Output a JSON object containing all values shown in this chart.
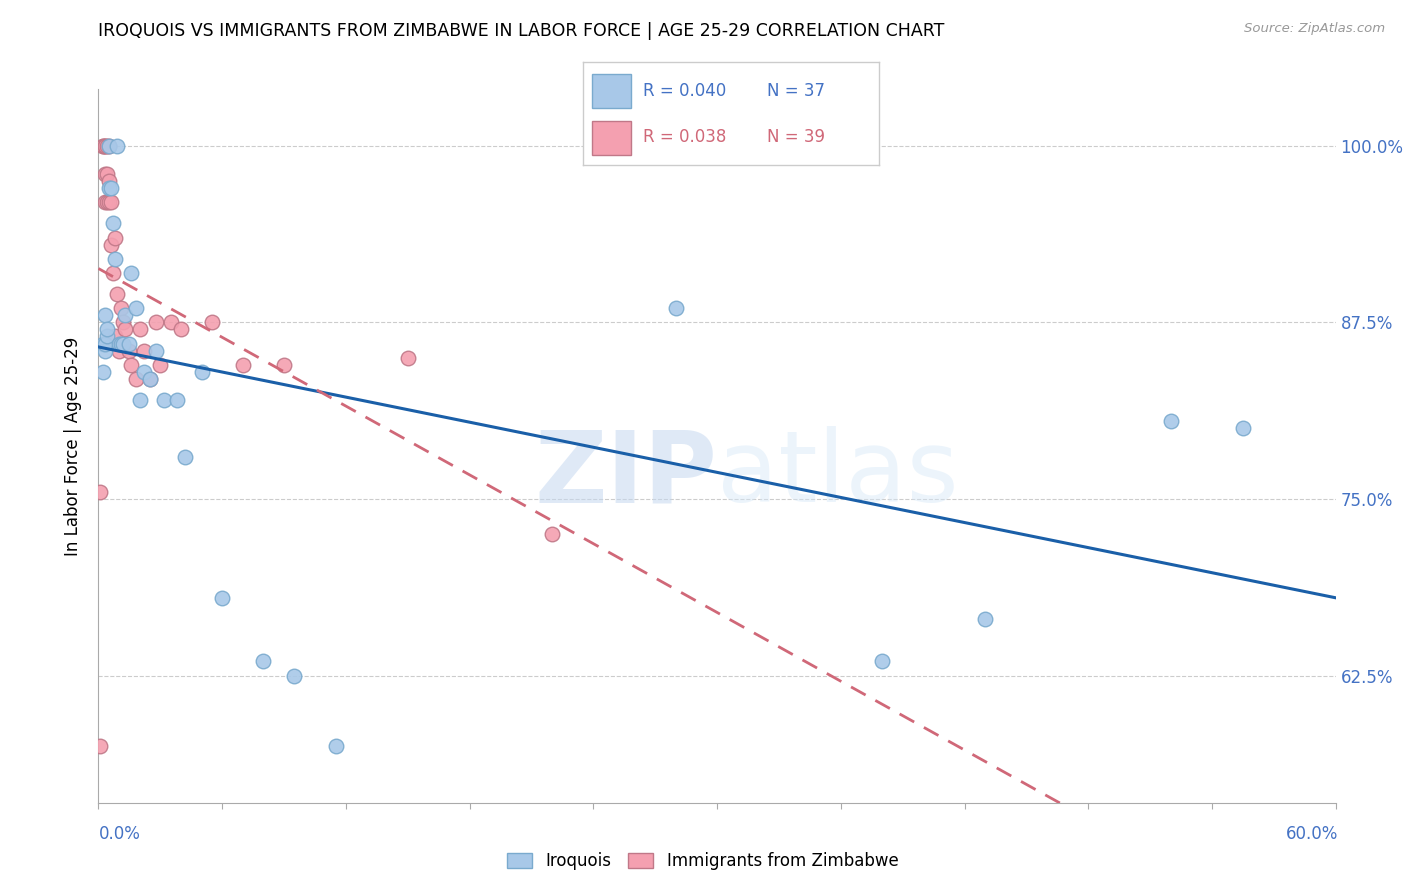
{
  "title": "IROQUOIS VS IMMIGRANTS FROM ZIMBABWE IN LABOR FORCE | AGE 25-29 CORRELATION CHART",
  "source": "Source: ZipAtlas.com",
  "ylabel": "In Labor Force | Age 25-29",
  "color_blue": "#a8c8e8",
  "color_pink": "#f4a0b0",
  "line_blue": "#1a5fa8",
  "line_pink": "#d06878",
  "watermark_top": "ZIP",
  "watermark_bot": "atlas",
  "xlim": [
    0.0,
    0.6
  ],
  "ylim": [
    0.535,
    1.04
  ],
  "ytick_vals": [
    0.625,
    0.75,
    0.875,
    1.0
  ],
  "ytick_lbls": [
    "62.5%",
    "75.0%",
    "87.5%",
    "100.0%"
  ],
  "iroquois_x": [
    0.002,
    0.002,
    0.003,
    0.003,
    0.003,
    0.004,
    0.004,
    0.005,
    0.005,
    0.006,
    0.007,
    0.008,
    0.009,
    0.01,
    0.011,
    0.012,
    0.013,
    0.015,
    0.016,
    0.018,
    0.02,
    0.022,
    0.025,
    0.028,
    0.032,
    0.038,
    0.042,
    0.05,
    0.06,
    0.08,
    0.095,
    0.115,
    0.28,
    0.38,
    0.43,
    0.52,
    0.555
  ],
  "iroquois_y": [
    0.84,
    0.86,
    0.88,
    0.855,
    0.86,
    0.865,
    0.87,
    1.0,
    0.97,
    0.97,
    0.945,
    0.92,
    1.0,
    0.86,
    0.86,
    0.86,
    0.88,
    0.86,
    0.91,
    0.885,
    0.82,
    0.84,
    0.835,
    0.855,
    0.82,
    0.82,
    0.78,
    0.84,
    0.68,
    0.635,
    0.625,
    0.575,
    0.885,
    0.635,
    0.665,
    0.805,
    0.8
  ],
  "zimbabwe_x": [
    0.001,
    0.001,
    0.002,
    0.002,
    0.003,
    0.003,
    0.003,
    0.003,
    0.004,
    0.004,
    0.004,
    0.005,
    0.005,
    0.005,
    0.006,
    0.006,
    0.007,
    0.008,
    0.008,
    0.009,
    0.01,
    0.011,
    0.012,
    0.013,
    0.015,
    0.016,
    0.018,
    0.02,
    0.022,
    0.025,
    0.028,
    0.03,
    0.035,
    0.04,
    0.055,
    0.07,
    0.09,
    0.15,
    0.22
  ],
  "zimbabwe_y": [
    0.575,
    0.755,
    1.0,
    1.0,
    1.0,
    1.0,
    0.98,
    0.96,
    1.0,
    0.98,
    0.96,
    1.0,
    0.975,
    0.96,
    0.96,
    0.93,
    0.91,
    0.935,
    0.865,
    0.895,
    0.855,
    0.885,
    0.875,
    0.87,
    0.855,
    0.845,
    0.835,
    0.87,
    0.855,
    0.835,
    0.875,
    0.845,
    0.875,
    0.87,
    0.875,
    0.845,
    0.845,
    0.85,
    0.725
  ]
}
